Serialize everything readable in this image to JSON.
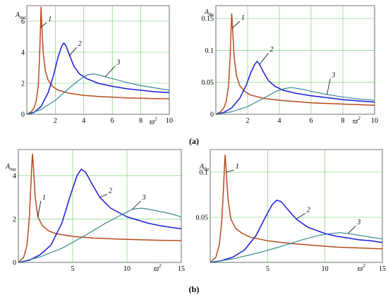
{
  "captions": {
    "a": "(a)",
    "b": "(b)"
  },
  "series_colors": {
    "1": "#b84a1c",
    "2": "#1a1ad8",
    "3": "#2b7f8f"
  },
  "chart_data": [
    {
      "type": "line",
      "ylabel": "A",
      "ylabel_sub": "ma",
      "xlabel": "ϖ",
      "xlabel_sup": "2",
      "xlim": [
        0,
        10
      ],
      "ylim": [
        0,
        7
      ],
      "xticks": [
        2,
        4,
        6,
        8,
        10
      ],
      "yticks": [
        0,
        2,
        4,
        6
      ],
      "xgrid": [
        0,
        2,
        4,
        6,
        8,
        10
      ],
      "ygrid": [
        0,
        2,
        4,
        6
      ],
      "grid": true,
      "series": [
        {
          "label": "1",
          "color": "#b84a1c",
          "x": [
            0,
            0.3,
            0.5,
            0.65,
            0.8,
            0.9,
            0.96,
            1.0,
            1.05,
            1.15,
            1.3,
            1.5,
            1.8,
            2.2,
            3,
            4,
            5,
            6,
            7,
            8,
            9,
            10
          ],
          "y": [
            0,
            0.15,
            0.4,
            0.8,
            1.8,
            3.8,
            5.6,
            6.9,
            5.8,
            4.0,
            2.8,
            2.2,
            1.8,
            1.55,
            1.35,
            1.22,
            1.15,
            1.1,
            1.06,
            1.03,
            1.01,
            1.0
          ]
        },
        {
          "label": "2",
          "color": "#1a1ad8",
          "x": [
            0,
            0.5,
            1,
            1.5,
            1.9,
            2.2,
            2.45,
            2.6,
            2.75,
            3.0,
            3.3,
            3.7,
            4.2,
            5,
            6,
            7,
            8,
            9,
            10
          ],
          "y": [
            0,
            0.12,
            0.5,
            1.4,
            2.6,
            3.7,
            4.4,
            4.6,
            4.4,
            3.8,
            3.1,
            2.6,
            2.3,
            2.0,
            1.8,
            1.65,
            1.55,
            1.45,
            1.4
          ]
        },
        {
          "label": "3",
          "color": "#2b7f8f",
          "x": [
            0,
            1,
            2,
            3,
            3.8,
            4.3,
            4.7,
            5.0,
            5.5,
            6,
            7,
            8,
            9,
            10
          ],
          "y": [
            0,
            0.3,
            0.9,
            1.7,
            2.3,
            2.55,
            2.6,
            2.55,
            2.42,
            2.3,
            2.05,
            1.85,
            1.7,
            1.55
          ]
        }
      ],
      "annotations": [
        {
          "text": "1",
          "x": 1.5,
          "y": 6.0
        },
        {
          "text": "2",
          "x": 3.6,
          "y": 4.4
        },
        {
          "text": "3",
          "x": 6.3,
          "y": 3.2
        }
      ]
    },
    {
      "type": "line",
      "ylabel": "A",
      "ylabel_sub": "θa",
      "xlabel": "ϖ",
      "xlabel_sup": "2",
      "xlim": [
        0,
        10
      ],
      "ylim": [
        0,
        0.17
      ],
      "xticks": [
        2,
        4,
        6,
        8,
        10
      ],
      "yticks": [
        0,
        0.05,
        0.1,
        0.15
      ],
      "xgrid": [
        0,
        2,
        4,
        6,
        8,
        10
      ],
      "ygrid": [
        0,
        0.05,
        0.1,
        0.15
      ],
      "grid": true,
      "series": [
        {
          "label": "1",
          "color": "#b84a1c",
          "x": [
            0,
            0.3,
            0.5,
            0.65,
            0.8,
            0.9,
            0.96,
            1.0,
            1.05,
            1.15,
            1.3,
            1.5,
            1.8,
            2.2,
            3,
            4,
            5,
            6,
            7,
            8,
            9,
            10
          ],
          "y": [
            0,
            0.004,
            0.01,
            0.02,
            0.045,
            0.09,
            0.135,
            0.157,
            0.135,
            0.09,
            0.06,
            0.045,
            0.036,
            0.03,
            0.025,
            0.022,
            0.02,
            0.018,
            0.017,
            0.016,
            0.015,
            0.014
          ]
        },
        {
          "label": "2",
          "color": "#1a1ad8",
          "x": [
            0,
            0.5,
            1,
            1.5,
            1.9,
            2.2,
            2.45,
            2.6,
            2.75,
            3.0,
            3.3,
            3.7,
            4.2,
            5,
            6,
            7,
            8,
            9,
            10
          ],
          "y": [
            0,
            0.003,
            0.01,
            0.025,
            0.045,
            0.065,
            0.078,
            0.083,
            0.078,
            0.066,
            0.053,
            0.044,
            0.038,
            0.033,
            0.029,
            0.026,
            0.023,
            0.021,
            0.019
          ]
        },
        {
          "label": "3",
          "color": "#2b7f8f",
          "x": [
            0,
            1,
            2,
            3,
            3.8,
            4.3,
            4.7,
            5.0,
            5.5,
            6,
            7,
            8,
            9,
            10
          ],
          "y": [
            0,
            0.004,
            0.012,
            0.025,
            0.036,
            0.04,
            0.042,
            0.041,
            0.039,
            0.036,
            0.031,
            0.027,
            0.024,
            0.022
          ]
        }
      ],
      "annotations": [
        {
          "text": "1",
          "x": 1.6,
          "y": 0.148
        },
        {
          "text": "2",
          "x": 3.4,
          "y": 0.098
        },
        {
          "text": "3",
          "x": 7.3,
          "y": 0.058
        }
      ]
    },
    {
      "type": "line",
      "ylabel": "A",
      "ylabel_sub": "ma",
      "xlabel": "ϖ",
      "xlabel_sup": "2",
      "xlim": [
        0,
        15
      ],
      "ylim": [
        0,
        5.2
      ],
      "xticks": [
        5,
        10,
        15
      ],
      "yticks": [
        0,
        2,
        4
      ],
      "xgrid": [
        0,
        5,
        10,
        15
      ],
      "ygrid": [
        0,
        2,
        4
      ],
      "grid": true,
      "series": [
        {
          "label": "1",
          "color": "#b84a1c",
          "x": [
            0,
            0.5,
            0.8,
            1.0,
            1.15,
            1.25,
            1.3,
            1.4,
            1.55,
            1.8,
            2.2,
            2.8,
            3.5,
            5,
            7,
            9,
            11,
            13,
            15
          ],
          "y": [
            0,
            0.25,
            0.8,
            2.0,
            3.5,
            4.6,
            5.0,
            4.3,
            3.0,
            2.1,
            1.7,
            1.45,
            1.32,
            1.2,
            1.12,
            1.08,
            1.05,
            1.02,
            1.0
          ]
        },
        {
          "label": "2",
          "color": "#1a1ad8",
          "x": [
            0,
            1,
            2,
            3,
            4,
            4.8,
            5.4,
            5.8,
            6.2,
            6.8,
            7.5,
            8.5,
            10,
            11,
            12,
            13,
            14,
            15
          ],
          "y": [
            0,
            0.1,
            0.35,
            0.8,
            1.8,
            3.1,
            4.0,
            4.3,
            4.15,
            3.6,
            3.0,
            2.5,
            2.1,
            1.95,
            1.8,
            1.7,
            1.62,
            1.55
          ]
        },
        {
          "label": "3",
          "color": "#2b7f8f",
          "x": [
            0,
            2,
            4,
            6,
            8,
            9.5,
            10.5,
            11.3,
            12,
            13,
            14,
            15
          ],
          "y": [
            0,
            0.25,
            0.65,
            1.2,
            1.8,
            2.2,
            2.45,
            2.5,
            2.45,
            2.35,
            2.25,
            2.1
          ]
        }
      ],
      "annotations": [
        {
          "text": "1",
          "x": 2.2,
          "y": 2.9
        },
        {
          "text": "2",
          "x": 8.3,
          "y": 3.2
        },
        {
          "text": "3",
          "x": 11.4,
          "y": 2.9
        }
      ]
    },
    {
      "type": "line",
      "ylabel": "A",
      "ylabel_sub": "θa",
      "xlabel": "ϖ",
      "xlabel_sup": "2",
      "xlim": [
        0,
        15
      ],
      "ylim": [
        0,
        0.125
      ],
      "xticks": [
        5,
        10,
        15
      ],
      "yticks": [
        0.05,
        0.1
      ],
      "xgrid": [
        0,
        5,
        10,
        15
      ],
      "ygrid": [
        0,
        0.05,
        0.1
      ],
      "grid": true,
      "series": [
        {
          "label": "1",
          "color": "#b84a1c",
          "x": [
            0,
            0.5,
            0.8,
            1.0,
            1.15,
            1.25,
            1.3,
            1.4,
            1.55,
            1.8,
            2.2,
            2.8,
            3.5,
            5,
            7,
            9,
            11,
            13,
            15
          ],
          "y": [
            0,
            0.006,
            0.02,
            0.045,
            0.08,
            0.108,
            0.119,
            0.1,
            0.07,
            0.048,
            0.038,
            0.032,
            0.028,
            0.024,
            0.021,
            0.019,
            0.017,
            0.016,
            0.015
          ]
        },
        {
          "label": "2",
          "color": "#1a1ad8",
          "x": [
            0,
            1,
            2,
            3,
            4,
            4.8,
            5.4,
            5.8,
            6.2,
            6.8,
            7.5,
            8.5,
            10,
            11,
            12,
            13,
            14,
            15
          ],
          "y": [
            0,
            0.002,
            0.006,
            0.014,
            0.03,
            0.05,
            0.064,
            0.069,
            0.067,
            0.058,
            0.048,
            0.039,
            0.032,
            0.029,
            0.027,
            0.025,
            0.024,
            0.022
          ]
        },
        {
          "label": "3",
          "color": "#2b7f8f",
          "x": [
            0,
            2,
            4,
            6,
            8,
            9.5,
            10.5,
            11.3,
            12,
            13,
            14,
            15
          ],
          "y": [
            0,
            0.004,
            0.01,
            0.017,
            0.025,
            0.03,
            0.032,
            0.033,
            0.032,
            0.03,
            0.028,
            0.026
          ]
        }
      ],
      "annotations": [
        {
          "text": "1",
          "x": 2.2,
          "y": 0.104
        },
        {
          "text": "2",
          "x": 8.4,
          "y": 0.056
        },
        {
          "text": "3",
          "x": 12.8,
          "y": 0.042
        }
      ]
    }
  ]
}
